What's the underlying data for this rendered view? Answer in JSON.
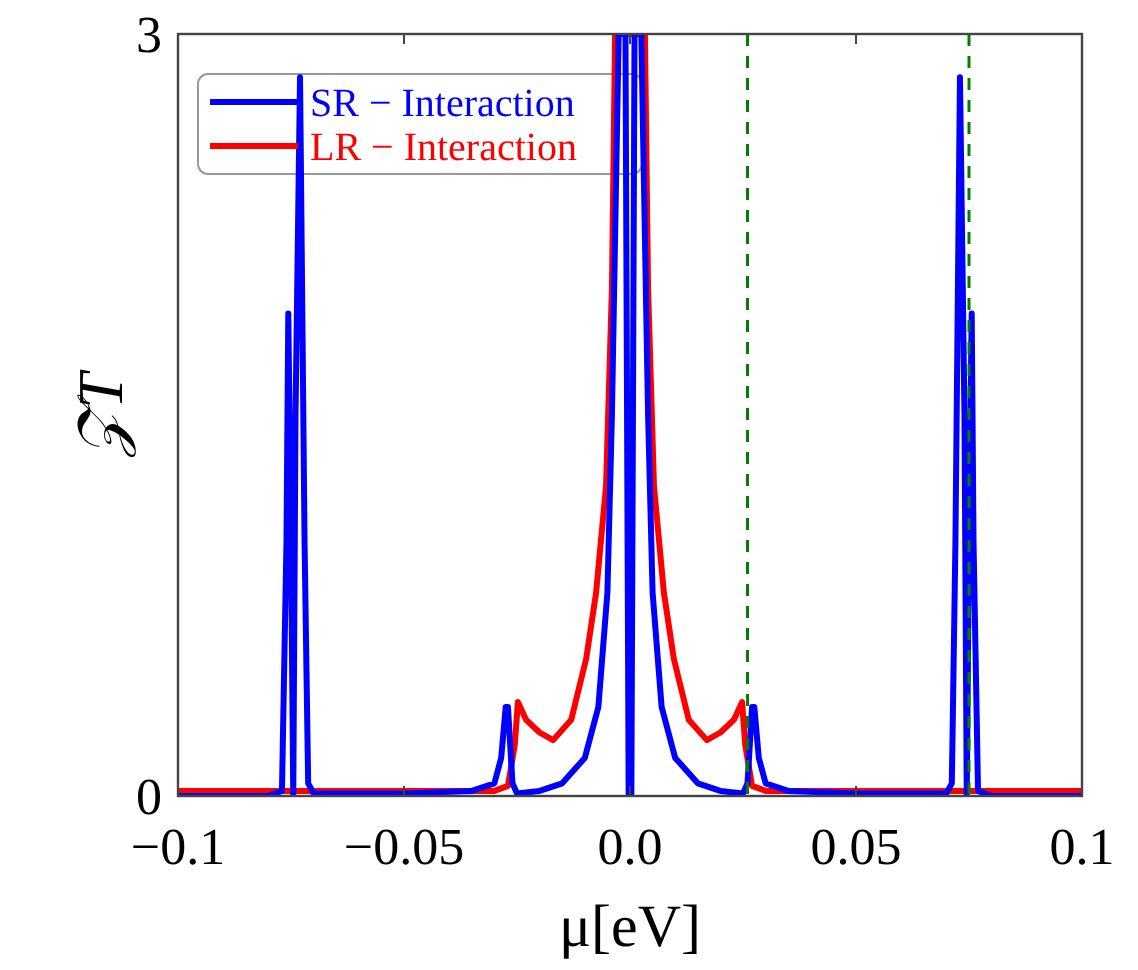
{
  "chart_data": {
    "type": "line",
    "xlabel": "μ[eV]",
    "ylabel": "𝒵T",
    "xlim": [
      -0.1,
      0.1
    ],
    "xticks": [
      {
        "value": -0.1,
        "label": "−0.1"
      },
      {
        "value": -0.05,
        "label": "−0.05"
      },
      {
        "value": 0,
        "label": "0.0"
      },
      0.05,
      0.1
    ],
    "ylim": [
      0,
      3
    ],
    "yticks": [
      0,
      3
    ],
    "grid": false,
    "legend": "top left",
    "line_style": "solid",
    "marker": "none",
    "ref_lines": [
      {
        "axis": "x",
        "value": 0.026,
        "color": "#008000",
        "line_style": "dashed"
      },
      {
        "axis": "x",
        "value": 0.075,
        "color": "#008000",
        "line_style": "dashed"
      }
    ],
    "series": [
      {
        "name": "LR − Interaction",
        "color": "#ff0000",
        "x": [
          -0.1,
          -0.03,
          -0.027,
          -0.0255,
          -0.0248,
          -0.023,
          -0.02,
          -0.017,
          -0.013,
          -0.0097,
          -0.0075,
          -0.0053,
          -0.004,
          -0.0033,
          0,
          0.0033,
          0.004,
          0.0053,
          0.0075,
          0.0097,
          0.013,
          0.017,
          0.02,
          0.023,
          0.0248,
          0.0255,
          0.027,
          0.03,
          0.1
        ],
        "values": [
          0.02,
          0.02,
          0.04,
          0.2,
          0.37,
          0.3,
          0.25,
          0.22,
          0.3,
          0.54,
          0.8,
          1.22,
          2.0,
          3,
          3,
          3,
          2.0,
          1.22,
          0.8,
          0.54,
          0.3,
          0.22,
          0.25,
          0.3,
          0.37,
          0.2,
          0.04,
          0.02,
          0.02
        ]
      },
      {
        "name": "SR − Interaction",
        "color": "#0000ff",
        "x": [
          -0.1,
          -0.08,
          -0.077,
          -0.076,
          -0.0756,
          -0.075,
          -0.0745,
          -0.074,
          -0.073,
          -0.072,
          -0.0712,
          -0.07,
          -0.05,
          -0.035,
          -0.03,
          -0.0285,
          -0.0275,
          -0.027,
          -0.026,
          -0.025,
          -0.02,
          -0.015,
          -0.01,
          -0.007,
          -0.005,
          -0.004,
          -0.003,
          -0.0025,
          -0.001,
          -0.0003,
          0.0003,
          0.001,
          0.0025,
          0.003,
          0.004,
          0.005,
          0.007,
          0.01,
          0.015,
          0.02,
          0.025,
          0.026,
          0.027,
          0.0275,
          0.0285,
          0.03,
          0.035,
          0.05,
          0.07,
          0.0712,
          0.072,
          0.073,
          0.074,
          0.0745,
          0.075,
          0.0756,
          0.076,
          0.077,
          0.08,
          0.1
        ],
        "values": [
          0,
          0,
          0.02,
          1.0,
          1.9,
          1.0,
          0,
          1.5,
          2.83,
          1.0,
          0.05,
          0.01,
          0.01,
          0.02,
          0.05,
          0.15,
          0.35,
          0.35,
          0.05,
          0.01,
          0.02,
          0.05,
          0.15,
          0.35,
          0.8,
          1.5,
          2.5,
          3,
          3,
          0,
          0,
          3,
          3,
          2.5,
          1.5,
          0.8,
          0.35,
          0.15,
          0.05,
          0.02,
          0.01,
          0.05,
          0.35,
          0.35,
          0.15,
          0.05,
          0.02,
          0.01,
          0.01,
          0.05,
          1.0,
          2.83,
          1.5,
          0,
          1.0,
          1.9,
          1.0,
          0.02,
          0,
          0
        ]
      }
    ]
  }
}
